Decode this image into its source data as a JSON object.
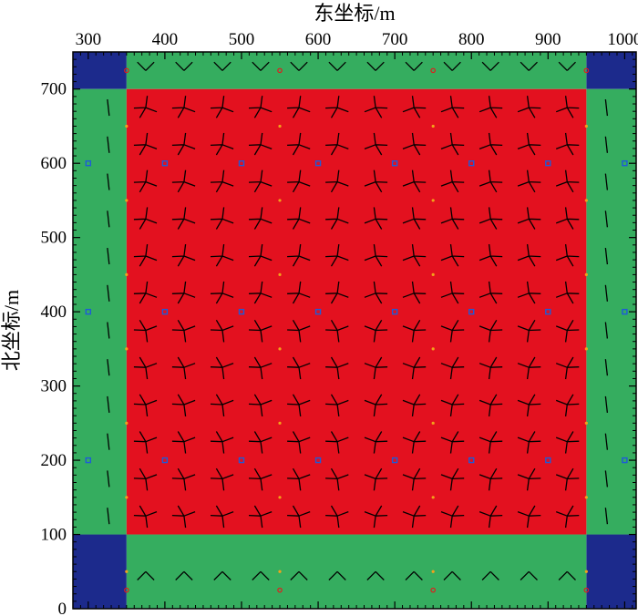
{
  "chart_data": {
    "type": "heatmap",
    "xlabel": "东坐标/m",
    "ylabel": "北坐标/m",
    "xlim": [
      280,
      1015
    ],
    "ylim": [
      0,
      750
    ],
    "xticks": [
      300,
      400,
      500,
      600,
      700,
      800,
      900,
      1000
    ],
    "yticks": [
      0,
      100,
      200,
      300,
      400,
      500,
      600,
      700
    ],
    "zones": [
      {
        "name": "corner",
        "color": "#1c2a8c",
        "x": [
          280,
          350
        ],
        "y": [
          700,
          750
        ]
      },
      {
        "name": "corner",
        "color": "#1c2a8c",
        "x": [
          950,
          1015
        ],
        "y": [
          700,
          750
        ]
      },
      {
        "name": "corner",
        "color": "#1c2a8c",
        "x": [
          280,
          350
        ],
        "y": [
          0,
          100
        ]
      },
      {
        "name": "corner",
        "color": "#1c2a8c",
        "x": [
          950,
          1015
        ],
        "y": [
          0,
          100
        ]
      },
      {
        "name": "edge",
        "color": "#35ad5f",
        "x": [
          350,
          950
        ],
        "y": [
          700,
          750
        ]
      },
      {
        "name": "edge",
        "color": "#35ad5f",
        "x": [
          350,
          950
        ],
        "y": [
          0,
          100
        ]
      },
      {
        "name": "edge",
        "color": "#35ad5f",
        "x": [
          280,
          350
        ],
        "y": [
          100,
          700
        ]
      },
      {
        "name": "edge",
        "color": "#35ad5f",
        "x": [
          950,
          1015
        ],
        "y": [
          100,
          700
        ]
      },
      {
        "name": "interior",
        "color": "#e3111f",
        "x": [
          350,
          950
        ],
        "y": [
          100,
          700
        ]
      }
    ],
    "blue_markers": {
      "x": [
        300,
        400,
        500,
        600,
        700,
        800,
        900,
        1000
      ],
      "y": [
        200,
        400,
        600
      ],
      "color": "#1e5bd8"
    },
    "orange_markers": {
      "x": [
        350,
        550,
        750,
        950
      ],
      "y": [
        50,
        150,
        250,
        350,
        450,
        550,
        650
      ],
      "color": "#f2a21b"
    },
    "red_markers": {
      "points": [
        [
          350,
          25
        ],
        [
          550,
          25
        ],
        [
          750,
          25
        ],
        [
          950,
          25
        ],
        [
          350,
          725
        ],
        [
          550,
          725
        ],
        [
          750,
          725
        ],
        [
          950,
          725
        ]
      ],
      "color": "#e31a1c"
    },
    "glyph_grid": {
      "x": [
        375,
        425,
        475,
        525,
        575,
        625,
        675,
        725,
        775,
        825,
        875,
        925
      ],
      "y": [
        125,
        175,
        225,
        275,
        325,
        375,
        425,
        475,
        525,
        575,
        625,
        675
      ],
      "edge_x": [
        325,
        975
      ],
      "edge_y": [
        50,
        725
      ],
      "color": "#000000"
    }
  }
}
